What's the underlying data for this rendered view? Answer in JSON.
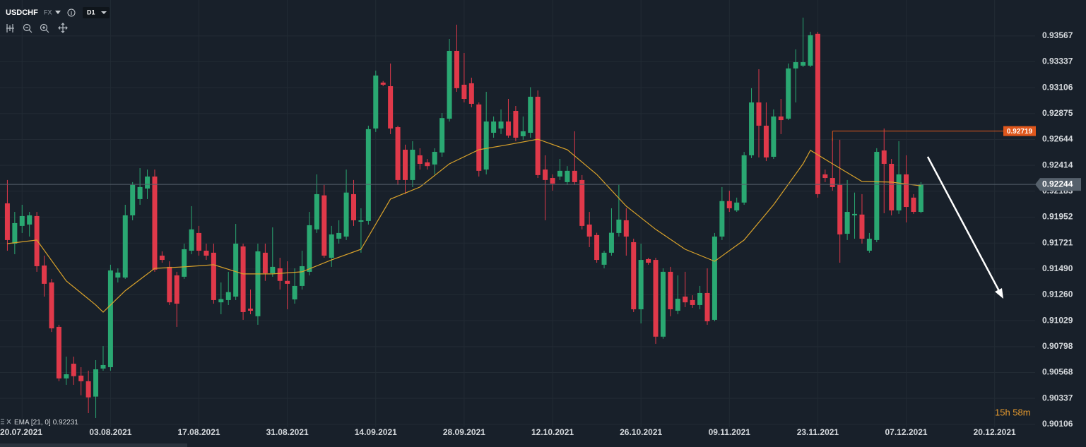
{
  "chart_data": {
    "type": "candlestick",
    "symbol": "USDCHF",
    "market": "FX",
    "timeframe": "D1",
    "up_color": "#2aa872",
    "down_color": "#e0394a",
    "grid": true,
    "xlim": [
      -1,
      139.5
    ],
    "ylim": [
      0.9008,
      0.93887
    ],
    "xticks": [
      {
        "value": 2,
        "label": "20.07.2021"
      },
      {
        "value": 14,
        "label": "03.08.2021"
      },
      {
        "value": 26,
        "label": "17.08.2021"
      },
      {
        "value": 38,
        "label": "31.08.2021"
      },
      {
        "value": 50,
        "label": "14.09.2021"
      },
      {
        "value": 62,
        "label": "28.09.2021"
      },
      {
        "value": 74,
        "label": "12.10.2021"
      },
      {
        "value": 86,
        "label": "26.10.2021"
      },
      {
        "value": 98,
        "label": "09.11.2021"
      },
      {
        "value": 110,
        "label": "23.11.2021"
      },
      {
        "value": 122,
        "label": "07.12.2021"
      },
      {
        "value": 134,
        "label": "20.12.2021"
      }
    ],
    "yticks": [
      0.93567,
      0.93337,
      0.93106,
      0.92875,
      0.92644,
      0.92414,
      0.92183,
      0.91952,
      0.91721,
      {
        "value": 0.9149,
        "label": "0.91490"
      },
      {
        "value": 0.9126,
        "label": "0.91260"
      },
      0.91029,
      0.90798,
      0.90568,
      0.90337,
      0.90106
    ],
    "open": [
      0.92075,
      0.91716,
      0.91874,
      0.91886,
      0.91962,
      0.91521,
      0.9137,
      0.90974,
      0.90515,
      0.90646,
      0.9054,
      0.9049,
      0.90353,
      0.90603,
      0.90615,
      0.91414,
      0.91414,
      0.91968,
      0.92113,
      0.92207,
      0.92314,
      0.91609,
      0.91509,
      0.91433,
      0.91421,
      0.91653,
      0.91811,
      0.91653,
      0.91635,
      0.91193,
      0.91213,
      0.91244,
      0.91691,
      0.91137,
      0.91069,
      0.91635,
      0.91452,
      0.91496,
      0.91384,
      0.91219,
      0.91339,
      0.91465,
      0.91843,
      0.92146,
      0.9159,
      0.9176,
      0.91779,
      0.92157,
      0.91911,
      0.91918,
      0.92742,
      0.93151,
      0.93119,
      0.92754,
      0.92553,
      0.92283,
      0.92503,
      0.9244,
      0.92421,
      0.92528,
      0.92829,
      0.93434,
      0.93132,
      0.93145,
      0.92956,
      0.92376,
      0.92704,
      0.92742,
      0.92804,
      0.92899,
      0.92673,
      0.92704,
      0.93025,
      0.92376,
      0.92301,
      0.92314,
      0.92264,
      0.92365,
      0.92283,
      0.91886,
      0.91792,
      0.91528,
      0.91635,
      0.91811,
      0.91924,
      0.91729,
      0.91131,
      0.91578,
      0.91571,
      0.90887,
      0.91465,
      0.91118,
      0.91244,
      0.91213,
      0.91169,
      0.91276,
      0.91037,
      0.91779,
      0.92095,
      0.92012,
      0.92082,
      0.92503,
      0.92974,
      0.92767,
      0.9249,
      0.92849,
      0.92829,
      0.93277,
      0.93302,
      0.93302,
      0.93586,
      0.92333,
      0.92301,
      0.92239,
      0.91804,
      0.91968,
      0.91975,
      0.91653,
      0.91748,
      0.92546,
      0.92427,
      0.92012,
      0.92333,
      0.92126,
      0.91999
    ],
    "high": [
      0.92283,
      0.91999,
      0.92062,
      0.91999,
      0.91999,
      0.91609,
      0.91402,
      0.90993,
      0.90709,
      0.90709,
      0.90615,
      0.90584,
      0.90678,
      0.90803,
      0.91528,
      0.91496,
      0.92062,
      0.92264,
      0.92389,
      0.92376,
      0.92376,
      0.91647,
      0.91559,
      0.91465,
      0.91716,
      0.9205,
      0.91874,
      0.91716,
      0.91716,
      0.9137,
      0.91465,
      0.91892,
      0.91716,
      0.91307,
      0.91716,
      0.91716,
      0.91861,
      0.9159,
      0.91559,
      0.91496,
      0.91653,
      0.91999,
      0.92333,
      0.92239,
      0.91874,
      0.91924,
      0.92376,
      0.92283,
      0.92031,
      0.92767,
      0.93258,
      0.93165,
      0.93321,
      0.92767,
      0.92598,
      0.92629,
      0.92566,
      0.92471,
      0.92566,
      0.9288,
      0.93541,
      0.93667,
      0.93415,
      0.93195,
      0.92974,
      0.93069,
      0.92849,
      0.92912,
      0.93006,
      0.92943,
      0.92849,
      0.9311,
      0.93081,
      0.92503,
      0.92333,
      0.92471,
      0.92407,
      0.92717,
      0.92327,
      0.91999,
      0.91813,
      0.91653,
      0.92031,
      0.92239,
      0.92031,
      0.9176,
      0.91716,
      0.9159,
      0.9159,
      0.91496,
      0.91509,
      0.91433,
      0.91465,
      0.91256,
      0.91339,
      0.91496,
      0.91811,
      0.9222,
      0.92188,
      0.92126,
      0.92534,
      0.93101,
      0.9327,
      0.92974,
      0.92912,
      0.93006,
      0.93321,
      0.93447,
      0.9373,
      0.93604,
      0.93604,
      0.92376,
      0.9266,
      0.92642,
      0.92283,
      0.92171,
      0.92157,
      0.91811,
      0.92566,
      0.92742,
      0.92471,
      0.92629,
      0.92503,
      0.92157,
      0.92264
    ],
    "low": [
      0.91653,
      0.91622,
      0.91811,
      0.91779,
      0.91465,
      0.91244,
      0.90929,
      0.9049,
      0.90458,
      0.90458,
      0.90365,
      0.90206,
      0.90162,
      0.90584,
      0.90584,
      0.9137,
      0.91402,
      0.91924,
      0.92062,
      0.92113,
      0.91465,
      0.91546,
      0.91169,
      0.90974,
      0.91402,
      0.91622,
      0.91609,
      0.91571,
      0.91181,
      0.91087,
      0.91169,
      0.91213,
      0.91037,
      0.91087,
      0.90993,
      0.91384,
      0.91421,
      0.91307,
      0.91131,
      0.91181,
      0.91307,
      0.91433,
      0.91811,
      0.9159,
      0.91509,
      0.91716,
      0.91748,
      0.91874,
      0.91635,
      0.91886,
      0.92711,
      0.93119,
      0.92692,
      0.92239,
      0.92157,
      0.9222,
      0.92376,
      0.92376,
      0.92333,
      0.9249,
      0.92804,
      0.93069,
      0.92974,
      0.92931,
      0.92314,
      0.92333,
      0.9266,
      0.92692,
      0.9266,
      0.92629,
      0.92642,
      0.9266,
      0.92301,
      0.91924,
      0.92188,
      0.92283,
      0.92239,
      0.92239,
      0.91843,
      0.91685,
      0.91546,
      0.91496,
      0.91609,
      0.91779,
      0.91609,
      0.91106,
      0.91005,
      0.91528,
      0.90823,
      0.90868,
      0.91069,
      0.91087,
      0.9115,
      0.91144,
      0.91131,
      0.90993,
      0.91024,
      0.91748,
      0.91999,
      0.91999,
      0.92062,
      0.92478,
      0.92484,
      0.92452,
      0.92471,
      0.92692,
      0.92817,
      0.92974,
      0.93289,
      0.93289,
      0.92126,
      0.92264,
      0.92188,
      0.91546,
      0.91748,
      0.9176,
      0.91716,
      0.91635,
      0.91729,
      0.91987,
      0.91968,
      0.91981,
      0.91905,
      0.91981,
      0.91987
    ],
    "close": [
      0.91748,
      0.91899,
      0.91962,
      0.91968,
      0.91515,
      0.91358,
      0.90961,
      0.90515,
      0.90552,
      0.90535,
      0.9049,
      0.90346,
      0.90596,
      0.90634,
      0.91477,
      0.91458,
      0.91968,
      0.92239,
      0.9222,
      0.92314,
      0.91484,
      0.91571,
      0.91193,
      0.91181,
      0.91666,
      0.91843,
      0.91653,
      0.91609,
      0.91213,
      0.91222,
      0.91284,
      0.91716,
      0.91106,
      0.91118,
      0.91647,
      0.91452,
      0.91509,
      0.91384,
      0.91358,
      0.91339,
      0.91515,
      0.9188,
      0.92157,
      0.91609,
      0.91798,
      0.91811,
      0.92171,
      0.91924,
      0.91924,
      0.92736,
      0.93214,
      0.93132,
      0.92742,
      0.92283,
      0.92283,
      0.92553,
      0.92427,
      0.92407,
      0.92534,
      0.92835,
      0.93434,
      0.93101,
      0.93006,
      0.92962,
      0.92365,
      0.92804,
      0.92804,
      0.92804,
      0.92679,
      0.9266,
      0.92717,
      0.93025,
      0.92327,
      0.92283,
      0.92251,
      0.92365,
      0.92365,
      0.92264,
      0.91874,
      0.91779,
      0.91571,
      0.91635,
      0.91813,
      0.9193,
      0.91779,
      0.91131,
      0.91571,
      0.91546,
      0.90887,
      0.91465,
      0.91131,
      0.91225,
      0.91193,
      0.91169,
      0.91276,
      0.91024,
      0.91779,
      0.92095,
      0.92031,
      0.92082,
      0.92503,
      0.92974,
      0.92767,
      0.92484,
      0.92849,
      0.92817,
      0.93277,
      0.93333,
      0.93333,
      0.93573,
      0.92157,
      0.92301,
      0.9222,
      0.91798,
      0.91999,
      0.91981,
      0.9176,
      0.9176,
      0.92534,
      0.92427,
      0.92012,
      0.92333,
      0.92043,
      0.91999,
      0.92244
    ],
    "ema": {
      "name": "EMA [21, 0]",
      "color": "#d9a22a",
      "x": [
        0,
        4,
        8,
        12,
        13,
        16,
        20,
        24,
        28,
        32,
        36,
        40,
        44,
        48,
        52,
        56,
        60,
        64,
        68,
        72,
        76,
        80,
        84,
        88,
        92,
        96,
        100,
        104,
        108,
        109,
        112,
        116,
        120,
        124
      ],
      "values": [
        0.91716,
        0.91748,
        0.91384,
        0.91169,
        0.91106,
        0.91297,
        0.91496,
        0.91509,
        0.91528,
        0.91446,
        0.91446,
        0.91465,
        0.91571,
        0.91666,
        0.92113,
        0.9222,
        0.92427,
        0.92553,
        0.92598,
        0.92647,
        0.92553,
        0.92333,
        0.9205,
        0.91843,
        0.91666,
        0.91559,
        0.91748,
        0.92062,
        0.92427,
        0.92547,
        0.92427,
        0.9227,
        0.92264,
        0.92231
      ]
    },
    "level": {
      "value": 0.92719,
      "x_start": 112,
      "color": "#e0571c"
    },
    "last_price": {
      "value": 0.92244,
      "color": "#56616c"
    },
    "timer": "15h 58m"
  }
}
